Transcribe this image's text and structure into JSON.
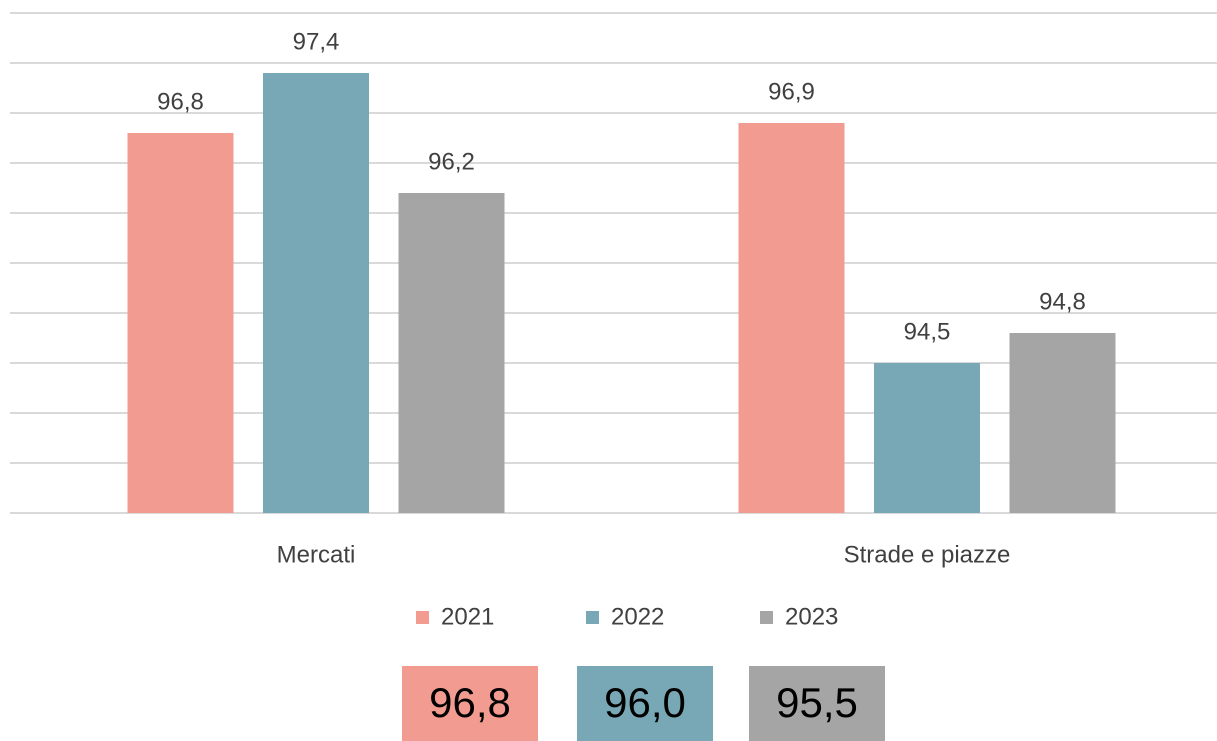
{
  "chart_data": {
    "type": "bar",
    "categories": [
      "Mercati",
      "Strade e piazze"
    ],
    "series": [
      {
        "name": "2021",
        "color": "#f29b91",
        "values": [
          96.8,
          96.9
        ],
        "value_labels": [
          "96,8",
          "96,9"
        ]
      },
      {
        "name": "2022",
        "color": "#78a7b5",
        "values": [
          97.4,
          94.5
        ],
        "value_labels": [
          "97,4",
          "94,5"
        ]
      },
      {
        "name": "2023",
        "color": "#a5a5a5",
        "values": [
          96.2,
          94.8
        ],
        "value_labels": [
          "96,2",
          "94,8"
        ]
      }
    ],
    "ylim": [
      93,
      98
    ],
    "yticks": [
      93,
      93.5,
      94,
      94.5,
      95,
      95.5,
      96,
      96.5,
      97,
      97.5,
      98
    ],
    "grid": true,
    "legend": "bottom",
    "summary": {
      "values": [
        96.8,
        96.0,
        95.5
      ],
      "value_labels": [
        "96,8",
        "96,0",
        "95,5"
      ]
    }
  }
}
